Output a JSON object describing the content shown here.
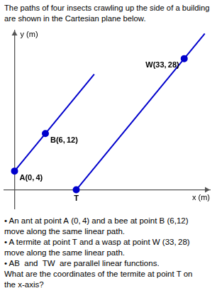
{
  "chart_data": {
    "type": "line",
    "title": [
      "The paths of four insects crawling up the side of a building",
      "are shown in the Cartesian plane below."
    ],
    "x_label": "x (m)",
    "y_label": "y (m)",
    "series": [
      {
        "x": [
          0,
          15.5
        ],
        "values": [
          4,
          24.67
        ],
        "color": "#0000CC"
      },
      {
        "x": [
          12,
          37
        ],
        "values": [
          0,
          33.33
        ],
        "color": "#0000CC"
      },
      {
        "type": "scatter",
        "marker": "circle",
        "x": [
          0,
          6,
          12,
          33
        ],
        "values": [
          4,
          12,
          0,
          28
        ],
        "color": "#0000CC"
      }
    ],
    "xlim": [
      -2,
      38
    ],
    "ylim": [
      -4,
      34
    ],
    "grid": false,
    "tick_labels": false,
    "annotations": [
      {
        "text": "A(0, 4)",
        "x": 0,
        "y": 4
      },
      {
        "text": "B(6, 12)",
        "x": 6,
        "y": 12
      },
      {
        "text": "W(33, 28)",
        "x": 33,
        "y": 28
      },
      {
        "text": "T",
        "x": 12,
        "y": 0
      },
      {
        "text": "• An ant at point A (0, 4) and a bee at point B (6,12)"
      },
      {
        "text": "move along the same linear path."
      },
      {
        "text": "• A termite at point T and a wasp at point W (33, 28)"
      },
      {
        "text": "move along the same linear path."
      },
      {
        "text": "• AB  and  TW  are parallel linear functions."
      },
      {
        "text": "What are the coordinates of the termite at point T on"
      },
      {
        "text": "the x-axis?"
      }
    ]
  }
}
